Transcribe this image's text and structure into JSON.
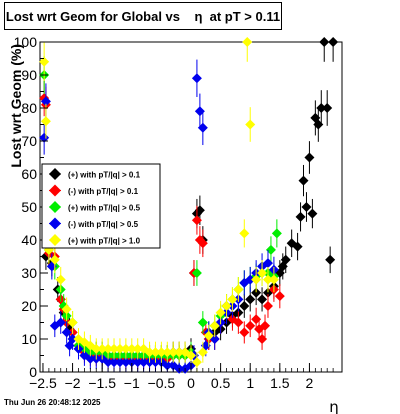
{
  "title": "Lost wrt Geom for Global vs    η  at pT > 0.11",
  "footer": "Thu Jun 26 20:48:12 2025",
  "chart_data": {
    "type": "scatter",
    "xlabel": "η",
    "ylabel": "Lost wrt Geom (%)",
    "xlim": [
      -2.55,
      2.55
    ],
    "ylim": [
      0,
      100
    ],
    "x_ticks": [
      -2.5,
      -2,
      -1.5,
      -1,
      -0.5,
      0,
      0.5,
      1,
      1.5,
      2
    ],
    "x_tick_labels": [
      "−2.5",
      "−2",
      "−1.5",
      "−1",
      "−0.5",
      "0",
      "0.5",
      "1",
      "1.5",
      "2"
    ],
    "y_ticks": [
      0,
      10,
      20,
      30,
      40,
      50,
      60,
      70,
      80,
      90,
      100
    ],
    "legend_position": "middle-left",
    "series": [
      {
        "name": "(+) with pT/|q| > 0.1",
        "color": "#000000",
        "marker": "diamond",
        "points": [
          [
            -2.45,
            35
          ],
          [
            -2.35,
            33
          ],
          [
            -2.25,
            25
          ],
          [
            -2.2,
            22
          ],
          [
            -2.15,
            18
          ],
          [
            -2.1,
            15
          ],
          [
            -2.05,
            13
          ],
          [
            -2.0,
            12
          ],
          [
            -1.9,
            8
          ],
          [
            -1.8,
            7
          ],
          [
            -1.7,
            6
          ],
          [
            -1.6,
            6
          ],
          [
            -1.5,
            6
          ],
          [
            -1.4,
            5
          ],
          [
            -1.3,
            5
          ],
          [
            -1.2,
            5
          ],
          [
            -1.1,
            5
          ],
          [
            -1.0,
            5
          ],
          [
            -0.9,
            5
          ],
          [
            -0.8,
            5
          ],
          [
            -0.7,
            5
          ],
          [
            -0.6,
            5
          ],
          [
            -0.5,
            5
          ],
          [
            -0.4,
            5
          ],
          [
            -0.3,
            6
          ],
          [
            -0.2,
            6
          ],
          [
            -0.1,
            6
          ],
          [
            0.0,
            7
          ],
          [
            0.05,
            30
          ],
          [
            0.1,
            48
          ],
          [
            0.15,
            49
          ],
          [
            0.2,
            40
          ],
          [
            0.3,
            10
          ],
          [
            0.4,
            12
          ],
          [
            0.5,
            13
          ],
          [
            0.6,
            15
          ],
          [
            0.7,
            17
          ],
          [
            0.8,
            18
          ],
          [
            0.9,
            20
          ],
          [
            1.0,
            22
          ],
          [
            1.1,
            24
          ],
          [
            1.2,
            22
          ],
          [
            1.3,
            24
          ],
          [
            1.4,
            26
          ],
          [
            1.5,
            30
          ],
          [
            1.55,
            32
          ],
          [
            1.6,
            34
          ],
          [
            1.7,
            39
          ],
          [
            1.8,
            38
          ],
          [
            1.85,
            47
          ],
          [
            1.9,
            58
          ],
          [
            1.95,
            50
          ],
          [
            2.0,
            65
          ],
          [
            2.05,
            48
          ],
          [
            2.1,
            77
          ],
          [
            2.15,
            75
          ],
          [
            2.2,
            80
          ],
          [
            2.25,
            100
          ],
          [
            2.3,
            80
          ],
          [
            2.35,
            34
          ],
          [
            2.4,
            100
          ]
        ]
      },
      {
        "name": "(-) with pT/|q| > 0.1",
        "color": "#ff0000",
        "marker": "diamond",
        "points": [
          [
            -2.48,
            83
          ],
          [
            -2.45,
            81
          ],
          [
            -2.4,
            36
          ],
          [
            -2.3,
            35
          ],
          [
            -2.2,
            22
          ],
          [
            -2.15,
            19
          ],
          [
            -2.1,
            15
          ],
          [
            -2.0,
            12
          ],
          [
            -1.9,
            8
          ],
          [
            -1.8,
            6
          ],
          [
            -1.7,
            5
          ],
          [
            -1.6,
            5
          ],
          [
            -1.5,
            5
          ],
          [
            -1.4,
            4
          ],
          [
            -1.3,
            4
          ],
          [
            -1.2,
            4
          ],
          [
            -1.1,
            4
          ],
          [
            -1.0,
            4
          ],
          [
            -0.9,
            4
          ],
          [
            -0.8,
            4
          ],
          [
            -0.7,
            4
          ],
          [
            -0.6,
            4
          ],
          [
            -0.5,
            4
          ],
          [
            -0.4,
            4
          ],
          [
            -0.3,
            5
          ],
          [
            -0.2,
            5
          ],
          [
            -0.1,
            5
          ],
          [
            0.0,
            6
          ],
          [
            0.05,
            30
          ],
          [
            0.1,
            46
          ],
          [
            0.15,
            40
          ],
          [
            0.2,
            39
          ],
          [
            0.25,
            12
          ],
          [
            0.3,
            10
          ],
          [
            0.4,
            10
          ],
          [
            0.5,
            15
          ],
          [
            0.6,
            20
          ],
          [
            0.7,
            16
          ],
          [
            0.8,
            15
          ],
          [
            0.9,
            12
          ],
          [
            1.0,
            14
          ],
          [
            1.1,
            16
          ],
          [
            1.15,
            13
          ],
          [
            1.2,
            10
          ],
          [
            1.25,
            14
          ],
          [
            1.3,
            20
          ],
          [
            1.4,
            25
          ],
          [
            1.5,
            23
          ]
        ]
      },
      {
        "name": "(+) with pT/|q| > 0.5",
        "color": "#00ee00",
        "marker": "diamond",
        "points": [
          [
            -2.48,
            90
          ],
          [
            -2.4,
            37
          ],
          [
            -2.3,
            32
          ],
          [
            -2.2,
            25
          ],
          [
            -2.15,
            20
          ],
          [
            -2.1,
            17
          ],
          [
            -2.0,
            15
          ],
          [
            -1.9,
            8
          ],
          [
            -1.8,
            7
          ],
          [
            -1.7,
            6
          ],
          [
            -1.6,
            6
          ],
          [
            -1.5,
            6
          ],
          [
            -1.4,
            5
          ],
          [
            -1.3,
            5
          ],
          [
            -1.2,
            5
          ],
          [
            -1.1,
            5
          ],
          [
            -1.0,
            5
          ],
          [
            -0.9,
            5
          ],
          [
            -0.8,
            5
          ],
          [
            -0.7,
            5
          ],
          [
            -0.6,
            5
          ],
          [
            -0.5,
            5
          ],
          [
            -0.4,
            5
          ],
          [
            -0.3,
            5
          ],
          [
            -0.2,
            5
          ],
          [
            -0.1,
            5
          ],
          [
            0.0,
            6
          ],
          [
            0.1,
            30
          ],
          [
            0.2,
            15
          ],
          [
            0.3,
            12
          ],
          [
            0.4,
            14
          ],
          [
            0.5,
            17
          ],
          [
            0.6,
            20
          ],
          [
            0.7,
            22
          ],
          [
            0.8,
            25
          ],
          [
            0.9,
            27
          ],
          [
            1.0,
            28
          ],
          [
            1.1,
            29
          ],
          [
            1.2,
            30
          ],
          [
            1.3,
            30
          ],
          [
            1.35,
            37
          ],
          [
            1.4,
            29
          ],
          [
            1.45,
            42
          ]
        ]
      },
      {
        "name": "(-) with pT/|q| > 0.5",
        "color": "#0000ee",
        "marker": "diamond",
        "points": [
          [
            -2.48,
            71
          ],
          [
            -2.45,
            82
          ],
          [
            -2.4,
            38
          ],
          [
            -2.35,
            32
          ],
          [
            -2.3,
            14
          ],
          [
            -2.2,
            15
          ],
          [
            -2.1,
            12
          ],
          [
            -2.05,
            8
          ],
          [
            -2.0,
            10
          ],
          [
            -1.9,
            7
          ],
          [
            -1.8,
            5
          ],
          [
            -1.7,
            4
          ],
          [
            -1.6,
            4
          ],
          [
            -1.5,
            4
          ],
          [
            -1.4,
            3
          ],
          [
            -1.3,
            3
          ],
          [
            -1.2,
            3
          ],
          [
            -1.1,
            3
          ],
          [
            -1.0,
            3
          ],
          [
            -0.9,
            3
          ],
          [
            -0.8,
            3
          ],
          [
            -0.7,
            3
          ],
          [
            -0.6,
            3
          ],
          [
            -0.5,
            3
          ],
          [
            -0.4,
            2
          ],
          [
            -0.3,
            2
          ],
          [
            -0.2,
            1
          ],
          [
            -0.1,
            1
          ],
          [
            0.0,
            2
          ],
          [
            0.05,
            5
          ],
          [
            0.1,
            89
          ],
          [
            0.15,
            79
          ],
          [
            0.2,
            74
          ],
          [
            0.25,
            8
          ],
          [
            0.3,
            12
          ],
          [
            0.4,
            10
          ],
          [
            0.5,
            15
          ],
          [
            0.6,
            18
          ],
          [
            0.7,
            20
          ],
          [
            0.8,
            22
          ],
          [
            0.9,
            27
          ],
          [
            1.0,
            28
          ],
          [
            1.1,
            30
          ],
          [
            1.2,
            32
          ],
          [
            1.3,
            33
          ],
          [
            1.4,
            31
          ]
        ]
      },
      {
        "name": "(+) with pT/|q| > 1.0",
        "color": "#ffff00",
        "marker": "diamond",
        "points": [
          [
            -2.48,
            94
          ],
          [
            -2.45,
            76
          ],
          [
            -2.4,
            37
          ],
          [
            -2.3,
            34
          ],
          [
            -2.2,
            28
          ],
          [
            -2.1,
            19
          ],
          [
            -2.0,
            15
          ],
          [
            -1.9,
            10
          ],
          [
            -1.8,
            9
          ],
          [
            -1.7,
            8
          ],
          [
            -1.6,
            7
          ],
          [
            -1.5,
            7
          ],
          [
            -1.4,
            7
          ],
          [
            -1.3,
            7
          ],
          [
            -1.2,
            7
          ],
          [
            -1.1,
            7
          ],
          [
            -1.0,
            7
          ],
          [
            -0.9,
            7
          ],
          [
            -0.8,
            7
          ],
          [
            -0.7,
            6
          ],
          [
            -0.6,
            6
          ],
          [
            -0.5,
            6
          ],
          [
            -0.4,
            6
          ],
          [
            -0.3,
            6
          ],
          [
            -0.2,
            6
          ],
          [
            -0.1,
            6
          ],
          [
            0.0,
            5
          ],
          [
            0.1,
            3
          ],
          [
            0.2,
            6
          ],
          [
            0.3,
            11
          ],
          [
            0.4,
            14
          ],
          [
            0.5,
            18
          ],
          [
            0.6,
            20
          ],
          [
            0.7,
            22
          ],
          [
            0.8,
            25
          ],
          [
            0.9,
            42
          ],
          [
            0.95,
            100
          ],
          [
            1.0,
            75
          ],
          [
            1.1,
            28
          ],
          [
            1.2,
            30
          ],
          [
            1.3,
            28
          ],
          [
            1.4,
            28
          ]
        ]
      }
    ]
  }
}
